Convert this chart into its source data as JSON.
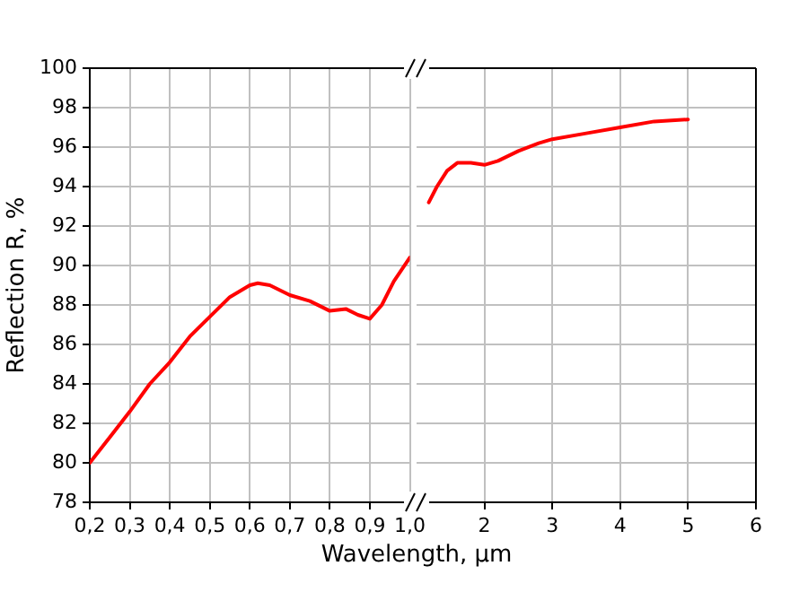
{
  "chart_data": [
    {
      "type": "line",
      "ylabel": "Reflection R, %",
      "xlabel": "Wavelength, µm",
      "xlim": [
        0.2,
        1.0
      ],
      "ylim": [
        78,
        100
      ],
      "xticks": [
        {
          "value": 0.2,
          "label": "0,2"
        },
        {
          "value": 0.3,
          "label": "0,3"
        },
        {
          "value": 0.4,
          "label": "0,4"
        },
        {
          "value": 0.5,
          "label": "0,5"
        },
        {
          "value": 0.6,
          "label": "0,6"
        },
        {
          "value": 0.7,
          "label": "0,7"
        },
        {
          "value": 0.8,
          "label": "0,8"
        },
        {
          "value": 0.9,
          "label": "0,9"
        },
        {
          "value": 1.0,
          "label": "1,0"
        }
      ],
      "yticks": [
        78,
        80,
        82,
        84,
        86,
        88,
        90,
        92,
        94,
        96,
        98,
        100
      ],
      "grid": true,
      "legend": false,
      "marker": "none",
      "line_style": "solid",
      "series": [
        {
          "color": "#ff0000",
          "x": [
            0.2,
            0.25,
            0.3,
            0.35,
            0.4,
            0.45,
            0.5,
            0.55,
            0.6,
            0.62,
            0.65,
            0.7,
            0.75,
            0.8,
            0.84,
            0.87,
            0.9,
            0.93,
            0.96,
            1.0
          ],
          "values": [
            80,
            81.3,
            82.6,
            84,
            85.1,
            86.4,
            87.4,
            88.4,
            89,
            89.1,
            89,
            88.5,
            88.2,
            87.7,
            87.8,
            87.5,
            87.3,
            88,
            89.2,
            90.4
          ]
        }
      ]
    },
    {
      "type": "line",
      "xlim": [
        1,
        6
      ],
      "ylim": [
        78,
        100
      ],
      "xticks": [
        2,
        3,
        4,
        5,
        6
      ],
      "yticks": [
        78,
        80,
        82,
        84,
        86,
        88,
        90,
        92,
        94,
        96,
        98,
        100
      ],
      "grid": true,
      "legend": false,
      "marker": "none",
      "line_style": "solid",
      "tick_labels": "x",
      "series": [
        {
          "color": "#ff0000",
          "x": [
            1.18,
            1.3,
            1.45,
            1.6,
            1.8,
            2,
            2.2,
            2.5,
            2.8,
            3,
            3.5,
            4,
            4.5,
            5
          ],
          "values": [
            93.2,
            94,
            94.8,
            95.2,
            95.2,
            95.1,
            95.3,
            95.8,
            96.2,
            96.4,
            96.7,
            97,
            97.3,
            97.4
          ]
        }
      ]
    }
  ]
}
